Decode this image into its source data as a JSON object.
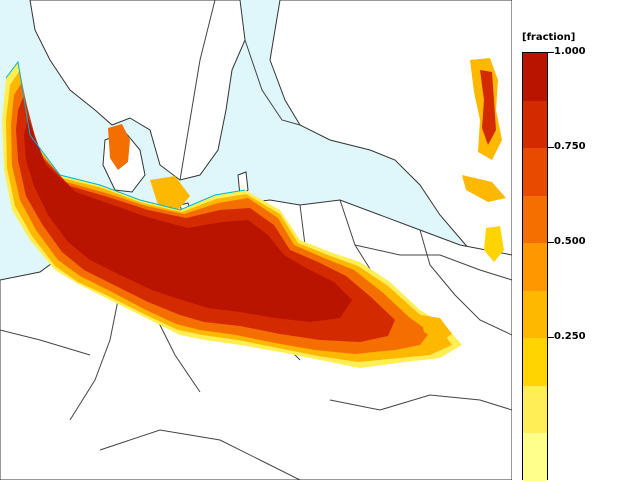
{
  "legend": {
    "unit": "[fraction]",
    "labels": [
      "1.000",
      "0.750",
      "0.500",
      "0.250"
    ],
    "bins": [
      {
        "range": "0.95-1.00",
        "color": "#b81400"
      },
      {
        "range": "0.85-0.95",
        "color": "#d42a00"
      },
      {
        "range": "0.75-0.85",
        "color": "#e84a00"
      },
      {
        "range": "0.65-0.75",
        "color": "#f56e00"
      },
      {
        "range": "0.55-0.65",
        "color": "#ff9800"
      },
      {
        "range": "0.45-0.55",
        "color": "#ffb800"
      },
      {
        "range": "0.35-0.45",
        "color": "#ffd400"
      },
      {
        "range": "0.25-0.35",
        "color": "#ffee55"
      },
      {
        "range": "0.15-0.25",
        "color": "#ffff8c"
      }
    ]
  },
  "map": {
    "background_color": "#dff7fb",
    "land_color": "#ffffff",
    "border_color": "#444444",
    "coast_edge_color": "#00b4d8"
  }
}
